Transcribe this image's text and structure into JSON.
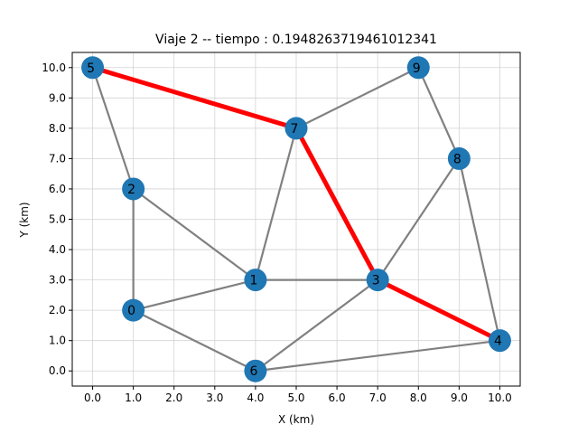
{
  "chart_data": {
    "type": "scatter",
    "title": "Viaje 2 --  tiempo : 0.1948263719461012341",
    "xlabel": "X (km)",
    "ylabel": "Y (km)",
    "xlim": [
      -0.5,
      10.5
    ],
    "ylim": [
      -0.5,
      10.5
    ],
    "xticks": [
      "0.0",
      "1.0",
      "2.0",
      "3.0",
      "4.0",
      "5.0",
      "6.0",
      "7.0",
      "8.0",
      "9.0",
      "10.0"
    ],
    "yticks": [
      "0.0",
      "1.0",
      "2.0",
      "3.0",
      "4.0",
      "5.0",
      "6.0",
      "7.0",
      "8.0",
      "9.0",
      "10.0"
    ],
    "grid": true,
    "nodes": [
      {
        "id": "0",
        "x": 1,
        "y": 2
      },
      {
        "id": "1",
        "x": 4,
        "y": 3
      },
      {
        "id": "2",
        "x": 1,
        "y": 6
      },
      {
        "id": "3",
        "x": 7,
        "y": 3
      },
      {
        "id": "4",
        "x": 10,
        "y": 1
      },
      {
        "id": "5",
        "x": 0,
        "y": 10
      },
      {
        "id": "6",
        "x": 4,
        "y": 0
      },
      {
        "id": "7",
        "x": 5,
        "y": 8
      },
      {
        "id": "8",
        "x": 9,
        "y": 7
      },
      {
        "id": "9",
        "x": 8,
        "y": 10
      }
    ],
    "edges": [
      [
        "5",
        "2"
      ],
      [
        "2",
        "0"
      ],
      [
        "2",
        "1"
      ],
      [
        "0",
        "1"
      ],
      [
        "0",
        "6"
      ],
      [
        "1",
        "3"
      ],
      [
        "1",
        "7"
      ],
      [
        "6",
        "3"
      ],
      [
        "6",
        "4"
      ],
      [
        "3",
        "8"
      ],
      [
        "7",
        "9"
      ],
      [
        "9",
        "8"
      ],
      [
        "8",
        "4"
      ]
    ],
    "path": [
      "5",
      "7",
      "3",
      "4"
    ],
    "colors": {
      "edge": "#808080",
      "path": "#ff0000",
      "node": "#1f77b4",
      "grid": "#d3d3d3"
    }
  }
}
